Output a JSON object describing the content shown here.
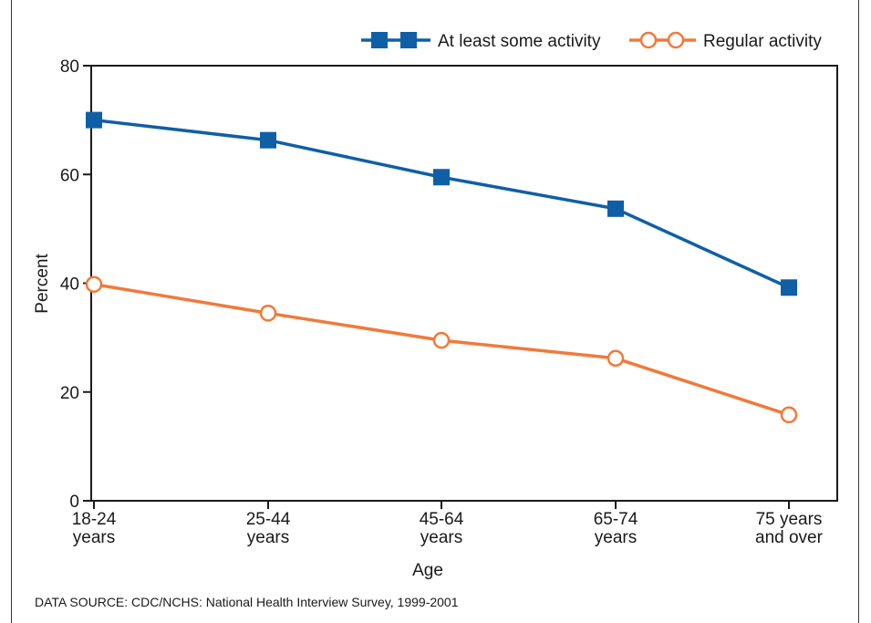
{
  "chart_data": {
    "type": "line",
    "categories": [
      "18-24 years",
      "25-44 years",
      "45-64 years",
      "65-74 years",
      "75 years and over"
    ],
    "category_lines": [
      [
        "18-24",
        "years"
      ],
      [
        "25-44",
        "years"
      ],
      [
        "45-64",
        "years"
      ],
      [
        "65-74",
        "years"
      ],
      [
        "75  years",
        "and over"
      ]
    ],
    "series": [
      {
        "name": "At least some activity",
        "values": [
          70,
          66.3,
          59.5,
          53.7,
          39.2
        ],
        "color": "#0f5fa6",
        "marker": "square"
      },
      {
        "name": "Regular activity",
        "values": [
          39.8,
          34.5,
          29.5,
          26.2,
          15.8
        ],
        "color": "#f07a3a",
        "marker": "open-circle"
      }
    ],
    "ylim": [
      0,
      80
    ],
    "yticks": [
      0,
      20,
      40,
      60,
      80
    ],
    "xlabel": "Age",
    "ylabel": "Percent",
    "legend_position": "top-right",
    "grid": false
  },
  "source_note": "DATA SOURCE: CDC/NCHS: National Health Interview Survey, 1999-2001"
}
